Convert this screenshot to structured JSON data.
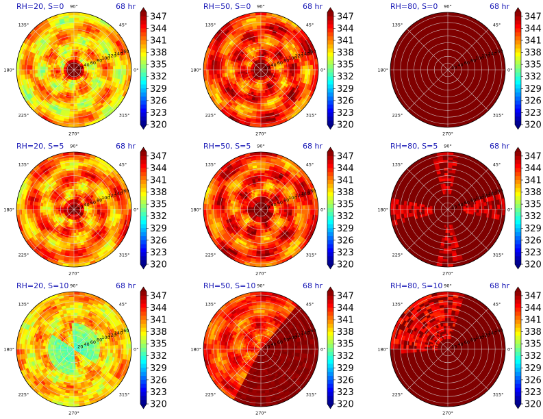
{
  "chart_data": {
    "type": "heatmap",
    "projection": "polar",
    "layout": {
      "rows": 3,
      "cols": 3
    },
    "angle_labels": [
      "0°",
      "45°",
      "90°",
      "135°",
      "180°",
      "225°",
      "270°",
      "315°"
    ],
    "radial_ticks": [
      20,
      40,
      60,
      80,
      100,
      120,
      140,
      160
    ],
    "radial_label_angle_deg": 20,
    "colorbar": {
      "colormap": "jet",
      "ticks": [
        320,
        323,
        326,
        329,
        332,
        335,
        338,
        341,
        344,
        347
      ],
      "range": [
        320,
        348
      ],
      "extend": "both"
    },
    "panels": [
      {
        "title": "RH=20, S=0",
        "time": "68 hr",
        "rh": 20,
        "shear": 0,
        "pattern": "core_hot_spiral",
        "mean_k": 339,
        "core_k": 348,
        "core_radius": 20,
        "background": "yellow-green spiral bands"
      },
      {
        "title": "RH=50, S=0",
        "time": "68 hr",
        "rh": 50,
        "shear": 0,
        "pattern": "core_hot_spiral",
        "mean_k": 343,
        "core_k": 348,
        "core_radius": 20,
        "background": "orange-red spiral bands"
      },
      {
        "title": "RH=80, S=0",
        "time": "68 hr",
        "rh": 80,
        "shear": 0,
        "pattern": "uniform",
        "mean_k": 348,
        "core_k": 348,
        "core_radius": 0,
        "background": "uniform dark red"
      },
      {
        "title": "RH=20, S=5",
        "time": "68 hr",
        "rh": 20,
        "shear": 5,
        "pattern": "core_hot_spiral",
        "mean_k": 341,
        "core_k": 348,
        "core_radius": 18,
        "background": "yellow-orange spiral bands"
      },
      {
        "title": "RH=50, S=5",
        "time": "68 hr",
        "rh": 50,
        "shear": 5,
        "pattern": "core_hot_spiral",
        "mean_k": 343,
        "core_k": 348,
        "core_radius": 22,
        "background": "red-orange spiral bands"
      },
      {
        "title": "RH=80, S=5",
        "time": "68 hr",
        "rh": 80,
        "shear": 5,
        "pattern": "uniform_patches",
        "mean_k": 348,
        "core_k": 348,
        "core_radius": 0,
        "background": "dark red with red patches"
      },
      {
        "title": "RH=20, S=10",
        "time": "68 hr",
        "rh": 20,
        "shear": 10,
        "pattern": "cool_core",
        "mean_k": 339,
        "core_k": 332,
        "core_radius": 40,
        "background": "yellow with cyan center"
      },
      {
        "title": "RH=50, S=10",
        "time": "68 hr",
        "rh": 50,
        "shear": 10,
        "pattern": "half_split",
        "mean_k": 343,
        "core_k": 347,
        "core_radius": 0,
        "background": "red/orange, dark red east half"
      },
      {
        "title": "RH=80, S=10",
        "time": "68 hr",
        "rh": 80,
        "shear": 10,
        "pattern": "half_split_dark",
        "mean_k": 346,
        "core_k": 348,
        "core_radius": 0,
        "background": "dark red with red north patches"
      }
    ]
  }
}
